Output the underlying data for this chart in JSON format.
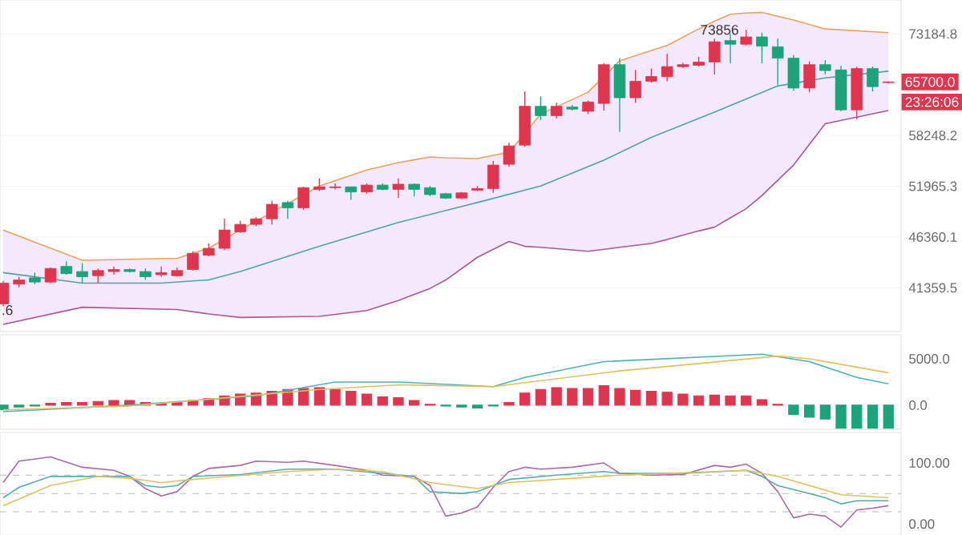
{
  "chart_data": [
    {
      "type": "candlestick",
      "categories": [
        null,
        null,
        null,
        null,
        null,
        null,
        null,
        null,
        null,
        null,
        null,
        null,
        null,
        null,
        null,
        null,
        null,
        null,
        null,
        null,
        null,
        null,
        null,
        null,
        null,
        null,
        null,
        null,
        null,
        null,
        null,
        null,
        null,
        null,
        null,
        null,
        null,
        null,
        null,
        null,
        null,
        null,
        null,
        null,
        null,
        null,
        null,
        null,
        null,
        null,
        null,
        null,
        null,
        null,
        null,
        null,
        null
      ],
      "ohlc": [
        [
          39900,
          42000,
          39700,
          41800
        ],
        [
          41700,
          42400,
          41400,
          42100
        ],
        [
          42300,
          42800,
          41700,
          41900
        ],
        [
          41900,
          43300,
          41800,
          43200
        ],
        [
          43400,
          43900,
          42600,
          42700
        ],
        [
          42900,
          43700,
          41800,
          42400
        ],
        [
          42500,
          43200,
          41800,
          43000
        ],
        [
          42900,
          43400,
          42600,
          43100
        ],
        [
          43100,
          43200,
          42800,
          42900
        ],
        [
          42900,
          43200,
          42100,
          42400
        ],
        [
          42600,
          43400,
          42400,
          42800
        ],
        [
          42500,
          43300,
          42400,
          43000
        ],
        [
          43100,
          44900,
          43000,
          44700
        ],
        [
          44500,
          45700,
          44400,
          45200
        ],
        [
          45200,
          48300,
          45000,
          47100
        ],
        [
          46900,
          48100,
          46800,
          47700
        ],
        [
          47700,
          48500,
          47500,
          48300
        ],
        [
          48300,
          50300,
          47700,
          49900
        ],
        [
          50100,
          50300,
          48300,
          49500
        ],
        [
          49500,
          51900,
          49300,
          51800
        ],
        [
          51600,
          52900,
          51400,
          51900
        ],
        [
          51800,
          52300,
          51600,
          51900
        ],
        [
          51900,
          51900,
          50400,
          51300
        ],
        [
          51300,
          52300,
          51100,
          52100
        ],
        [
          52100,
          52300,
          51500,
          51600
        ],
        [
          51600,
          52900,
          50600,
          52200
        ],
        [
          52200,
          52300,
          50800,
          51600
        ],
        [
          51800,
          52000,
          50800,
          51000
        ],
        [
          51100,
          51200,
          50500,
          50600
        ],
        [
          50600,
          51300,
          50500,
          51200
        ],
        [
          51500,
          52000,
          51400,
          51700
        ],
        [
          51700,
          55000,
          51200,
          54500
        ],
        [
          54600,
          57300,
          54300,
          56900
        ],
        [
          57000,
          64300,
          56800,
          62200
        ],
        [
          62200,
          63600,
          60300,
          60900
        ],
        [
          60900,
          62700,
          60500,
          62200
        ],
        [
          62100,
          62400,
          61600,
          61800
        ],
        [
          61500,
          63000,
          61100,
          62800
        ],
        [
          62600,
          68500,
          61600,
          68300
        ],
        [
          68300,
          69300,
          58700,
          63400
        ],
        [
          63400,
          67500,
          62700,
          65800
        ],
        [
          65800,
          67700,
          65600,
          66500
        ],
        [
          66500,
          70000,
          65800,
          68000
        ],
        [
          68000,
          68600,
          67800,
          68300
        ],
        [
          68200,
          69500,
          68000,
          68700
        ],
        [
          68700,
          72400,
          66800,
          71900
        ],
        [
          72100,
          73200,
          68500,
          71500
        ],
        [
          71500,
          73856,
          71300,
          72700
        ],
        [
          72700,
          73400,
          68500,
          71200
        ],
        [
          71100,
          72400,
          65300,
          69300
        ],
        [
          69300,
          69800,
          64400,
          64800
        ],
        [
          64800,
          68800,
          64200,
          68300
        ],
        [
          68300,
          69000,
          66800,
          67400
        ],
        [
          67500,
          68100,
          61500,
          61700
        ],
        [
          61700,
          68000,
          60400,
          67700
        ],
        [
          67700,
          68000,
          64300,
          65000
        ],
        [
          65600,
          65800,
          65500,
          65700
        ]
      ],
      "colors": [
        "#e0354f",
        "#e0354f",
        "#1ba37a",
        "#e0354f",
        "#1ba37a",
        "#1ba37a",
        "#e0354f",
        "#e0354f",
        "#1ba37a",
        "#1ba37a",
        "#e0354f",
        "#e0354f",
        "#e0354f",
        "#e0354f",
        "#e0354f",
        "#e0354f",
        "#e0354f",
        "#e0354f",
        "#1ba37a",
        "#e0354f",
        "#e0354f",
        "#e0354f",
        "#1ba37a",
        "#e0354f",
        "#1ba37a",
        "#e0354f",
        "#1ba37a",
        "#1ba37a",
        "#1ba37a",
        "#e0354f",
        "#e0354f",
        "#e0354f",
        "#e0354f",
        "#e0354f",
        "#1ba37a",
        "#e0354f",
        "#1ba37a",
        "#e0354f",
        "#e0354f",
        "#1ba37a",
        "#e0354f",
        "#e0354f",
        "#e0354f",
        "#e0354f",
        "#e0354f",
        "#e0354f",
        "#1ba37a",
        "#e0354f",
        "#1ba37a",
        "#1ba37a",
        "#1ba37a",
        "#e0354f",
        "#1ba37a",
        "#1ba37a",
        "#e0354f",
        "#1ba37a",
        "#e0354f"
      ],
      "series": [
        {
          "type": "line",
          "color": "#e8a25e",
          "values": [
            47100,
            null,
            null,
            null,
            null,
            44000,
            null,
            null,
            null,
            null,
            null,
            44200,
            null,
            45200,
            null,
            47100,
            null,
            null,
            null,
            null,
            52000,
            null,
            null,
            53900,
            null,
            54800,
            null,
            55500,
            55400,
            null,
            55300,
            null,
            56100,
            58500,
            61100,
            null,
            null,
            64200,
            null,
            68900,
            null,
            70500,
            71300,
            null,
            74000,
            75300,
            76500,
            76700,
            76800,
            null,
            75500,
            null,
            74000,
            null,
            null,
            null,
            73400
          ]
        },
        {
          "type": "line",
          "color": "#4fa3a5",
          "values": [
            42800,
            null,
            null,
            null,
            null,
            41800,
            null,
            null,
            null,
            null,
            41800,
            null,
            null,
            42100,
            null,
            42900,
            null,
            null,
            null,
            null,
            45400,
            null,
            null,
            null,
            null,
            47900,
            null,
            null,
            null,
            null,
            50100,
            null,
            null,
            null,
            52000,
            null,
            null,
            null,
            55100,
            null,
            null,
            58000,
            null,
            null,
            null,
            61400,
            null,
            null,
            null,
            65100,
            null,
            null,
            66300,
            null,
            null,
            null,
            67300
          ],
          "upper": [
            47100,
            null,
            null,
            null,
            null,
            44000,
            null,
            null,
            null,
            null,
            null,
            44200,
            null,
            45200,
            null,
            47100,
            null,
            null,
            null,
            null,
            52000,
            null,
            null,
            53900,
            null,
            54800,
            null,
            55500,
            55400,
            null,
            55300,
            null,
            56100,
            58500,
            61100,
            null,
            null,
            64200,
            null,
            68900,
            null,
            70500,
            71300,
            null,
            74000,
            75300,
            76500,
            76700,
            76800,
            null,
            75500,
            null,
            74000,
            null,
            null,
            null,
            73400
          ],
          "lower": [
            38100,
            null,
            null,
            null,
            null,
            39600,
            null,
            null,
            null,
            null,
            null,
            39400,
            null,
            39000,
            null,
            38700,
            null,
            null,
            null,
            null,
            38800,
            null,
            null,
            39300,
            null,
            40200,
            null,
            41300,
            42100,
            null,
            44300,
            null,
            45900,
            45400,
            45300,
            null,
            null,
            44900,
            null,
            45300,
            null,
            45700,
            46100,
            null,
            47000,
            47400,
            48400,
            49400,
            50900,
            null,
            54500,
            null,
            59800,
            null,
            null,
            null,
            61600
          ]
        },
        {
          "type": "line",
          "color": "#a9569b",
          "values": [
            38100,
            null,
            null,
            null,
            null,
            39600,
            null,
            null,
            null,
            null,
            null,
            39400,
            null,
            39000,
            null,
            38700,
            null,
            null,
            null,
            null,
            38800,
            null,
            null,
            39300,
            null,
            40200,
            null,
            41300,
            42100,
            null,
            44300,
            null,
            45900,
            45400,
            45300,
            null,
            null,
            44900,
            null,
            45300,
            null,
            45700,
            46100,
            null,
            47000,
            47400,
            48400,
            49400,
            50900,
            null,
            54500,
            null,
            59800,
            null,
            null,
            null,
            61600
          ]
        }
      ],
      "log": true,
      "ylim": [
        37500,
        79000
      ],
      "yticks": [
        73184.8,
        58248.2,
        51965.3,
        46360.1,
        41359.5
      ],
      "grid": "y",
      "tick_labels": "y",
      "annotations": [
        "73856",
        "65700.0",
        "23:26:06",
        ".6"
      ]
    },
    {
      "type": "bar",
      "categories": [
        null,
        null,
        null,
        null,
        null,
        null,
        null,
        null,
        null,
        null,
        null,
        null,
        null,
        null,
        null,
        null,
        null,
        null,
        null,
        null,
        null,
        null,
        null,
        null,
        null,
        null,
        null,
        null,
        null,
        null,
        null,
        null,
        null,
        null,
        null,
        null,
        null,
        null,
        null,
        null,
        null,
        null,
        null,
        null,
        null,
        null,
        null,
        null,
        null,
        null,
        null,
        null,
        null,
        null,
        null,
        null,
        null
      ],
      "values": [
        -500,
        -200,
        -100,
        200,
        300,
        300,
        400,
        500,
        500,
        300,
        200,
        300,
        500,
        700,
        1000,
        1200,
        1300,
        1500,
        1700,
        1800,
        1900,
        1700,
        1500,
        1200,
        900,
        800,
        500,
        100,
        -100,
        -200,
        -300,
        -100,
        300,
        1300,
        1700,
        1900,
        1800,
        1800,
        2100,
        1800,
        1600,
        1500,
        1400,
        1200,
        1000,
        1100,
        1000,
        1000,
        600,
        100,
        -1000,
        -1300,
        -1500,
        -2500,
        -2500,
        -2500,
        -2500
      ],
      "colors": [
        "#1ba37a",
        "#1ba37a",
        "#1ba37a",
        "#e0354f",
        "#e0354f",
        "#e0354f",
        "#e0354f",
        "#e0354f",
        "#e0354f",
        "#e0354f",
        "#e0354f",
        "#e0354f",
        "#e0354f",
        "#e0354f",
        "#e0354f",
        "#e0354f",
        "#e0354f",
        "#e0354f",
        "#e0354f",
        "#e0354f",
        "#e0354f",
        "#e0354f",
        "#e0354f",
        "#e0354f",
        "#e0354f",
        "#e0354f",
        "#e0354f",
        "#e0354f",
        "#1ba37a",
        "#1ba37a",
        "#1ba37a",
        "#1ba37a",
        "#e0354f",
        "#e0354f",
        "#e0354f",
        "#e0354f",
        "#e0354f",
        "#e0354f",
        "#e0354f",
        "#e0354f",
        "#e0354f",
        "#e0354f",
        "#e0354f",
        "#e0354f",
        "#e0354f",
        "#e0354f",
        "#e0354f",
        "#e0354f",
        "#e0354f",
        "#e0354f",
        "#1ba37a",
        "#1ba37a",
        "#1ba37a",
        "#1ba37a",
        "#1ba37a",
        "#1ba37a",
        "#1ba37a"
      ],
      "series": [
        {
          "type": "line",
          "color": "#4fb0b8",
          "values": [
            -700,
            null,
            null,
            null,
            null,
            null,
            null,
            null,
            0,
            null,
            null,
            null,
            null,
            null,
            null,
            null,
            1000,
            null,
            null,
            null,
            null,
            2500,
            null,
            null,
            null,
            2500,
            null,
            null,
            null,
            null,
            null,
            2000,
            null,
            3000,
            null,
            null,
            null,
            null,
            4700,
            null,
            null,
            null,
            null,
            5100,
            null,
            null,
            null,
            null,
            5500,
            null,
            null,
            4700,
            null,
            null,
            3000,
            null,
            2300
          ]
        },
        {
          "type": "line",
          "color": "#e0c060",
          "values": [
            -500,
            null,
            null,
            null,
            null,
            null,
            null,
            null,
            -100,
            null,
            null,
            null,
            null,
            null,
            null,
            null,
            null,
            null,
            null,
            null,
            1700,
            null,
            null,
            null,
            null,
            2200,
            null,
            null,
            null,
            null,
            null,
            2000,
            null,
            null,
            null,
            null,
            null,
            null,
            null,
            3700,
            null,
            null,
            null,
            null,
            null,
            null,
            null,
            null,
            null,
            5300,
            null,
            5000,
            null,
            null,
            null,
            null,
            3500
          ]
        }
      ],
      "ylim": [
        -2600,
        7600
      ],
      "yticks": [
        {
          "value": 5000,
          "label": "5000.0"
        },
        {
          "value": 0,
          "label": "0.0"
        }
      ],
      "tick_labels": "y"
    },
    {
      "type": "line",
      "categories": [
        null,
        null,
        null,
        null,
        null,
        null,
        null,
        null,
        null,
        null,
        null,
        null,
        null,
        null,
        null,
        null,
        null,
        null,
        null,
        null,
        null,
        null,
        null,
        null,
        null,
        null,
        null,
        null,
        null,
        null,
        null,
        null,
        null,
        null,
        null,
        null,
        null,
        null,
        null,
        null,
        null,
        null,
        null,
        null,
        null,
        null,
        null,
        null,
        null,
        null,
        null,
        null,
        null,
        null,
        null,
        null,
        null
      ],
      "series": [
        {
          "color": "#a96aa6",
          "values": [
            68,
            103,
            null,
            110,
            null,
            93,
            null,
            88,
            78,
            58,
            46,
            53,
            78,
            91,
            null,
            96,
            103,
            null,
            101,
            103,
            null,
            96,
            null,
            88,
            80,
            null,
            78,
            63,
            13,
            18,
            28,
            60,
            86,
            93,
            90,
            null,
            93,
            null,
            100,
            83,
            null,
            80,
            null,
            81,
            null,
            96,
            93,
            98,
            83,
            53,
            10,
            16,
            13,
            -5,
            23,
            26,
            30
          ]
        },
        {
          "color": "#5aaab0",
          "values": [
            43,
            60,
            null,
            78,
            null,
            78,
            null,
            78,
            78,
            63,
            60,
            63,
            78,
            null,
            null,
            81,
            null,
            null,
            90,
            null,
            null,
            90,
            null,
            null,
            83,
            null,
            78,
            53,
            null,
            50,
            53,
            63,
            73,
            null,
            null,
            80,
            null,
            null,
            86,
            83,
            null,
            null,
            null,
            83,
            null,
            null,
            null,
            88,
            78,
            63,
            null,
            50,
            43,
            33,
            38,
            null,
            38
          ]
        },
        {
          "color": "#e0c060",
          "values": [
            30,
            null,
            null,
            63,
            null,
            null,
            78,
            null,
            75,
            null,
            68,
            null,
            73,
            null,
            null,
            null,
            null,
            null,
            86,
            null,
            null,
            90,
            null,
            null,
            86,
            null,
            null,
            68,
            null,
            null,
            58,
            null,
            68,
            null,
            null,
            null,
            null,
            null,
            null,
            80,
            null,
            null,
            null,
            null,
            null,
            null,
            null,
            88,
            null,
            78,
            null,
            null,
            null,
            48,
            null,
            null,
            43
          ]
        }
      ],
      "ref_lines": [
        {
          "axis": "y",
          "value": 80,
          "color": "#bbbbbb",
          "line_style": "dashed"
        },
        {
          "axis": "y",
          "value": 50,
          "color": "#bbbbbb",
          "line_style": "dashed"
        },
        {
          "axis": "y",
          "value": 20,
          "color": "#bbbbbb",
          "line_style": "dashed"
        }
      ],
      "ylim": [
        -18,
        150
      ],
      "yticks": [
        {
          "value": 100,
          "label": "100.00"
        },
        {
          "value": 0,
          "label": "0.00"
        }
      ],
      "tick_labels": "y"
    }
  ]
}
